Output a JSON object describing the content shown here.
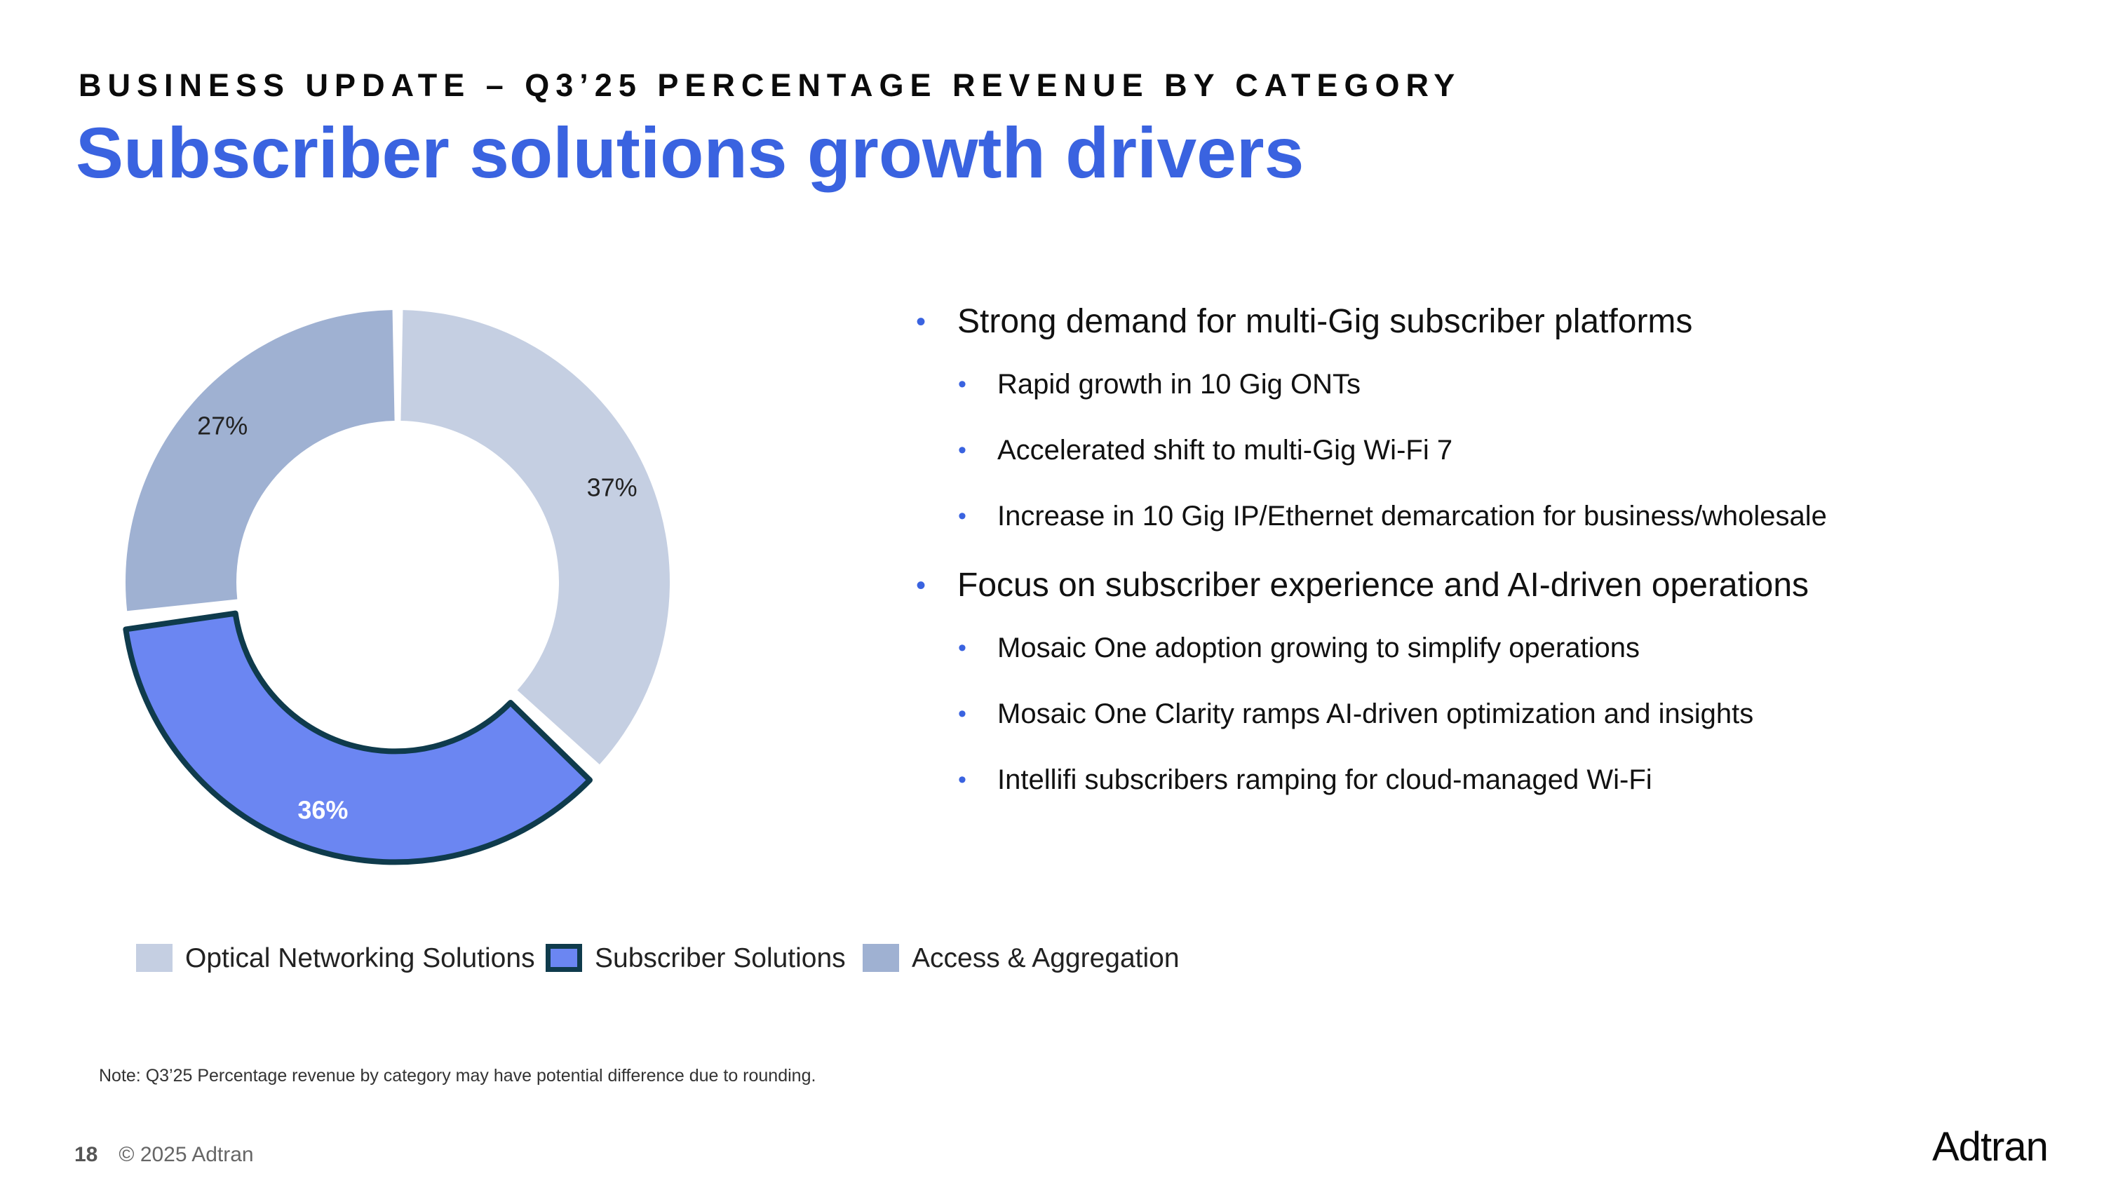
{
  "header": {
    "eyebrow": "BUSINESS UPDATE – Q3’25 PERCENTAGE REVENUE BY CATEGORY",
    "title": "Subscriber solutions growth drivers"
  },
  "chart_data": {
    "type": "pie",
    "categories": [
      "Optical Networking Solutions",
      "Subscriber Solutions",
      "Access & Aggregation"
    ],
    "values": [
      37,
      36,
      27
    ],
    "labels": [
      "37%",
      "36%",
      "27%"
    ],
    "colors": [
      "#c5cfe2",
      "#6b86f2",
      "#9fb1d2"
    ],
    "highlight_stroke": "#0f3b4c",
    "highlighted": "Subscriber Solutions",
    "legend_position": "bottom"
  },
  "legend": {
    "items": [
      {
        "label": "Optical Networking Solutions",
        "color": "#c5cfe2"
      },
      {
        "label": "Subscriber Solutions",
        "color": "#6b86f2",
        "border": "#0f3b4c"
      },
      {
        "label": "Access & Aggregation",
        "color": "#9fb1d2"
      }
    ]
  },
  "bullets": [
    {
      "text": "Strong demand for multi-Gig subscriber platforms",
      "sub": [
        "Rapid growth in 10 Gig ONTs",
        "Accelerated shift to multi-Gig Wi-Fi 7",
        "Increase in 10 Gig IP/Ethernet demarcation for business/wholesale"
      ]
    },
    {
      "text": "Focus on subscriber experience and AI-driven operations",
      "sub": [
        "Mosaic One adoption growing to simplify operations",
        "Mosaic One Clarity ramps AI-driven optimization and insights",
        "Intellifi subscribers ramping for cloud-managed Wi-Fi"
      ]
    }
  ],
  "note": "Note: Q3’25 Percentage revenue by category may have potential difference due to rounding.",
  "footer": {
    "page": "18",
    "copyright": "© 2025 Adtran"
  },
  "logo": "Adtran"
}
